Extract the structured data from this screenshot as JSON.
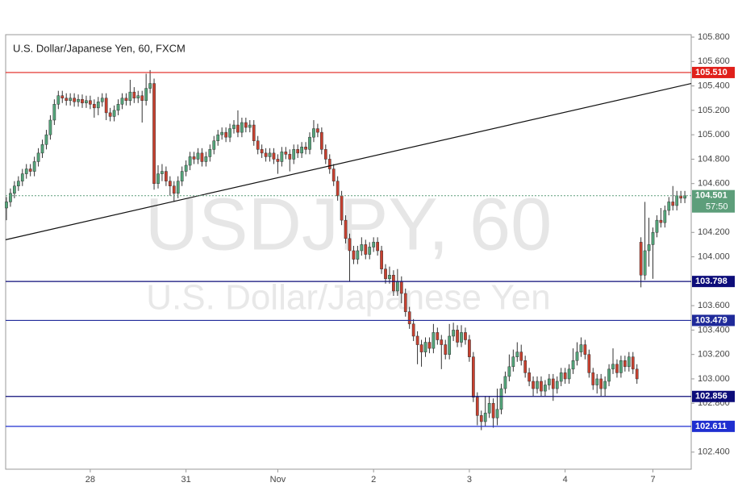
{
  "chart_data": {
    "type": "candlestick",
    "title": "U.S. Dollar/Japanese Yen, 60, FXCM",
    "watermark": "USDJPY, 60",
    "watermark_subtitle": "U.S. Dollar/Japanese Yen",
    "up_color": "#53a57a",
    "down_color": "#c8402f",
    "wick_color": "#333333",
    "xlim": [
      -0.2,
      171.6
    ],
    "xticks": [
      {
        "value": 21,
        "label": "28"
      },
      {
        "value": 45,
        "label": "31"
      },
      {
        "value": 68,
        "label": "Nov"
      },
      {
        "value": 92,
        "label": "2"
      },
      {
        "value": 116,
        "label": "3"
      },
      {
        "value": 140,
        "label": "4"
      },
      {
        "value": 162,
        "label": "7"
      }
    ],
    "ylim": [
      102.26,
      105.82
    ],
    "yticks": [
      {
        "value": 105.8,
        "label": "105.800"
      },
      {
        "value": 105.6,
        "label": "105.600"
      },
      {
        "value": 105.4,
        "label": "105.400"
      },
      {
        "value": 105.2,
        "label": "105.200"
      },
      {
        "value": 105.0,
        "label": "105.000"
      },
      {
        "value": 104.8,
        "label": "104.800"
      },
      {
        "value": 104.6,
        "label": "104.600"
      },
      {
        "value": 104.2,
        "label": "104.200"
      },
      {
        "value": 104.0,
        "label": "104.000"
      },
      {
        "value": 103.6,
        "label": "103.600"
      },
      {
        "value": 103.4,
        "label": "103.400"
      },
      {
        "value": 103.2,
        "label": "103.200"
      },
      {
        "value": 103.0,
        "label": "103.000"
      },
      {
        "value": 102.8,
        "label": "102.800"
      },
      {
        "value": 102.4,
        "label": "102.400"
      }
    ],
    "open": [
      104.4,
      104.45,
      104.52,
      104.58,
      104.62,
      104.68,
      104.72,
      104.7,
      104.78,
      104.85,
      104.92,
      105.0,
      105.12,
      105.25,
      105.32,
      105.3,
      105.28,
      105.3,
      105.27,
      105.29,
      105.26,
      105.28,
      105.25,
      105.22,
      105.27,
      105.3,
      105.18,
      105.15,
      105.2,
      105.25,
      105.3,
      105.28,
      105.35,
      105.3,
      105.32,
      105.28,
      105.38,
      105.42,
      104.6,
      104.68,
      104.7,
      104.62,
      104.58,
      104.52,
      104.62,
      104.7,
      104.75,
      104.82,
      104.8,
      104.85,
      104.78,
      104.82,
      104.88,
      104.95,
      105.0,
      105.02,
      104.98,
      105.05,
      105.08,
      105.02,
      105.1,
      105.06,
      105.08,
      104.95,
      104.88,
      104.85,
      104.82,
      104.85,
      104.8,
      104.78,
      104.86,
      104.84,
      104.8,
      104.88,
      104.85,
      104.9,
      104.88,
      104.98,
      105.05,
      105.02,
      104.88,
      104.8,
      104.72,
      104.62,
      104.5,
      104.3,
      104.15,
      104.05,
      103.98,
      104.05,
      104.1,
      104.02,
      104.08,
      104.12,
      104.05,
      103.9,
      103.82,
      103.85,
      103.72,
      103.8,
      103.7,
      103.55,
      103.45,
      103.35,
      103.28,
      103.22,
      103.3,
      103.25,
      103.38,
      103.32,
      103.28,
      103.2,
      103.35,
      103.4,
      103.3,
      103.38,
      103.32,
      103.18,
      102.85,
      102.7,
      102.65,
      102.72,
      102.8,
      102.68,
      102.75,
      102.92,
      103.02,
      103.1,
      103.18,
      103.22,
      103.15,
      103.05,
      102.98,
      102.92,
      102.98,
      102.9,
      102.95,
      103.0,
      102.92,
      102.98,
      103.05,
      103.0,
      103.08,
      103.15,
      103.22,
      103.28,
      103.2,
      103.05,
      102.95,
      103.0,
      102.92,
      102.98,
      103.08,
      103.12,
      103.05,
      103.15,
      103.1,
      103.18,
      103.08,
      104.12,
      103.85,
      104.05,
      104.1,
      104.2,
      104.3,
      104.28,
      104.38,
      104.45,
      104.42,
      104.5,
      104.48
    ],
    "high": [
      104.49,
      104.56,
      104.62,
      104.66,
      104.72,
      104.76,
      104.76,
      104.82,
      104.89,
      104.96,
      105.04,
      105.16,
      105.29,
      105.36,
      105.36,
      105.34,
      105.34,
      105.34,
      105.33,
      105.33,
      105.32,
      105.32,
      105.29,
      105.31,
      105.34,
      105.34,
      105.22,
      105.24,
      105.29,
      105.34,
      105.34,
      105.45,
      105.39,
      105.36,
      105.36,
      105.5,
      105.53,
      105.46,
      104.75,
      104.76,
      104.74,
      104.66,
      104.62,
      104.66,
      104.74,
      104.79,
      104.86,
      104.86,
      104.89,
      104.89,
      104.86,
      104.92,
      104.99,
      105.04,
      105.06,
      105.06,
      105.09,
      105.12,
      105.2,
      105.14,
      105.14,
      105.12,
      105.12,
      104.99,
      104.92,
      104.89,
      104.89,
      104.89,
      104.84,
      104.9,
      104.9,
      104.88,
      104.92,
      104.92,
      104.94,
      104.94,
      105.02,
      105.12,
      105.09,
      105.06,
      104.92,
      104.84,
      104.76,
      104.66,
      104.54,
      104.34,
      104.19,
      104.09,
      104.09,
      104.16,
      104.14,
      104.12,
      104.16,
      104.16,
      104.09,
      103.94,
      103.92,
      103.89,
      103.9,
      103.84,
      103.74,
      103.59,
      103.49,
      103.39,
      103.32,
      103.34,
      103.34,
      103.45,
      103.42,
      103.36,
      103.32,
      103.45,
      103.46,
      103.44,
      103.44,
      103.42,
      103.36,
      103.22,
      102.89,
      102.74,
      102.86,
      102.86,
      102.84,
      102.92,
      102.96,
      103.06,
      103.2,
      103.24,
      103.3,
      103.28,
      103.19,
      103.09,
      103.02,
      103.02,
      103.02,
      102.99,
      103.04,
      103.04,
      103.02,
      103.09,
      103.09,
      103.12,
      103.25,
      103.3,
      103.34,
      103.32,
      103.24,
      103.09,
      103.04,
      103.04,
      103.02,
      103.12,
      103.25,
      103.16,
      103.19,
      103.19,
      103.22,
      103.22,
      103.12,
      104.16,
      104.45,
      104.32,
      104.24,
      104.34,
      104.4,
      104.42,
      104.49,
      104.58,
      104.54,
      104.54,
      104.54
    ],
    "low": [
      104.3,
      104.41,
      104.48,
      104.54,
      104.58,
      104.64,
      104.66,
      104.66,
      104.74,
      104.81,
      104.88,
      104.96,
      105.08,
      105.21,
      105.26,
      105.24,
      105.24,
      105.23,
      105.23,
      105.22,
      105.22,
      105.21,
      105.14,
      105.16,
      105.23,
      105.12,
      105.11,
      105.11,
      105.16,
      105.21,
      105.24,
      105.24,
      105.26,
      105.26,
      105.1,
      105.24,
      105.34,
      104.55,
      104.56,
      104.62,
      104.58,
      104.5,
      104.45,
      104.48,
      104.58,
      104.66,
      104.71,
      104.76,
      104.76,
      104.74,
      104.74,
      104.78,
      104.84,
      104.91,
      104.96,
      104.94,
      104.94,
      105.01,
      104.98,
      104.98,
      105.02,
      105.02,
      104.91,
      104.84,
      104.81,
      104.78,
      104.78,
      104.76,
      104.68,
      104.74,
      104.8,
      104.7,
      104.76,
      104.81,
      104.81,
      104.84,
      104.84,
      104.94,
      104.98,
      104.84,
      104.76,
      104.68,
      104.58,
      104.46,
      104.26,
      104.11,
      103.8,
      103.94,
      103.94,
      104.01,
      103.98,
      103.98,
      104.04,
      104.01,
      103.86,
      103.78,
      103.78,
      103.68,
      103.68,
      103.62,
      103.51,
      103.41,
      103.31,
      103.12,
      103.1,
      103.18,
      103.21,
      103.21,
      103.28,
      103.08,
      103.16,
      103.16,
      103.31,
      103.26,
      103.26,
      103.28,
      103.14,
      102.81,
      102.62,
      102.58,
      102.61,
      102.68,
      102.6,
      102.62,
      102.71,
      102.88,
      102.98,
      103.06,
      103.14,
      103.11,
      103.01,
      102.94,
      102.86,
      102.88,
      102.86,
      102.86,
      102.91,
      102.82,
      102.88,
      102.94,
      102.96,
      102.96,
      103.04,
      103.11,
      103.18,
      103.16,
      103.01,
      102.91,
      102.88,
      102.86,
      102.86,
      102.94,
      103.04,
      103.01,
      103.01,
      103.06,
      103.06,
      103.04,
      102.96,
      103.75,
      103.81,
      103.92,
      103.82,
      104.16,
      104.24,
      104.24,
      104.34,
      104.38,
      104.38,
      104.44,
      104.44
    ],
    "close": [
      104.45,
      104.52,
      104.58,
      104.62,
      104.68,
      104.72,
      104.7,
      104.78,
      104.85,
      104.92,
      105.0,
      105.12,
      105.25,
      105.32,
      105.3,
      105.28,
      105.3,
      105.27,
      105.29,
      105.26,
      105.28,
      105.25,
      105.22,
      105.27,
      105.3,
      105.18,
      105.15,
      105.2,
      105.25,
      105.3,
      105.28,
      105.35,
      105.3,
      105.32,
      105.28,
      105.38,
      105.42,
      104.6,
      104.68,
      104.7,
      104.62,
      104.58,
      104.52,
      104.62,
      104.7,
      104.75,
      104.82,
      104.8,
      104.85,
      104.78,
      104.82,
      104.88,
      104.95,
      105.0,
      105.02,
      104.98,
      105.05,
      105.08,
      105.02,
      105.1,
      105.06,
      105.08,
      104.95,
      104.88,
      104.85,
      104.82,
      104.85,
      104.8,
      104.78,
      104.86,
      104.84,
      104.8,
      104.88,
      104.85,
      104.9,
      104.88,
      104.98,
      105.05,
      105.02,
      104.88,
      104.8,
      104.72,
      104.62,
      104.5,
      104.3,
      104.15,
      104.05,
      103.98,
      104.05,
      104.1,
      104.02,
      104.08,
      104.12,
      104.05,
      103.9,
      103.82,
      103.85,
      103.72,
      103.8,
      103.7,
      103.55,
      103.45,
      103.35,
      103.28,
      103.22,
      103.3,
      103.25,
      103.38,
      103.32,
      103.28,
      103.2,
      103.35,
      103.4,
      103.3,
      103.38,
      103.32,
      103.18,
      102.85,
      102.7,
      102.65,
      102.72,
      102.8,
      102.68,
      102.75,
      102.92,
      103.02,
      103.1,
      103.18,
      103.22,
      103.15,
      103.05,
      102.98,
      102.92,
      102.98,
      102.9,
      102.95,
      103.0,
      102.92,
      102.98,
      103.05,
      103.0,
      103.08,
      103.15,
      103.22,
      103.28,
      103.2,
      103.05,
      102.95,
      103.0,
      102.92,
      102.98,
      103.08,
      103.12,
      103.05,
      103.15,
      103.1,
      103.18,
      103.08,
      103.0,
      103.85,
      104.05,
      104.1,
      104.2,
      104.3,
      104.28,
      104.38,
      104.45,
      104.42,
      104.5,
      104.48,
      104.5
    ],
    "levels": [
      {
        "value": 105.51,
        "label": "105.510",
        "color": "#e0201b"
      },
      {
        "value": 103.798,
        "label": "103.798",
        "color": "#0d0d7a"
      },
      {
        "value": 103.479,
        "label": "103.479",
        "color": "#1f2a9a"
      },
      {
        "value": 102.856,
        "label": "102.856",
        "color": "#0d0d7a"
      },
      {
        "value": 102.611,
        "label": "102.611",
        "color": "#1f2fd0"
      }
    ],
    "last_price": {
      "value": 104.501,
      "label": "104.501",
      "countdown": "57:50",
      "color": "#5d9e7a"
    },
    "trendline": {
      "x": [
        -0.2,
        171.6
      ],
      "y": [
        104.14,
        105.42
      ],
      "color": "#111111"
    }
  }
}
